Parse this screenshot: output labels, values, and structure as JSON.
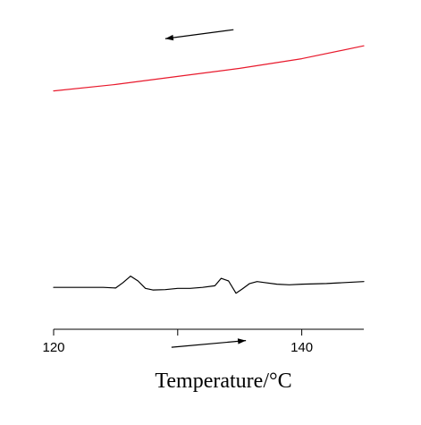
{
  "chart_data": {
    "type": "line",
    "title": "",
    "xlabel": "Temperature/°C",
    "ylabel": "",
    "xlim": [
      120,
      145
    ],
    "xticks": [
      120,
      130,
      140
    ],
    "xtick_labels": [
      "120",
      "",
      "140"
    ],
    "grid": false,
    "legend": "none",
    "series": [
      {
        "color": "#e8192c",
        "direction": "cooling",
        "x": [
          120,
          125,
          130,
          135,
          140,
          145
        ],
        "y": [
          0.74,
          0.76,
          0.785,
          0.81,
          0.84,
          0.88
        ]
      },
      {
        "color": "#000000",
        "direction": "heating",
        "x": [
          120,
          122,
          124,
          125,
          125.6,
          126.2,
          126.8,
          127.4,
          128,
          129,
          130,
          131,
          132,
          133,
          133.5,
          134.1,
          134.7,
          135.2,
          135.8,
          136.4,
          137,
          138,
          139,
          140,
          142,
          145
        ],
        "y": [
          0.13,
          0.13,
          0.13,
          0.128,
          0.145,
          0.165,
          0.15,
          0.127,
          0.122,
          0.123,
          0.127,
          0.127,
          0.13,
          0.135,
          0.158,
          0.15,
          0.112,
          0.125,
          0.142,
          0.148,
          0.145,
          0.14,
          0.138,
          0.14,
          0.142,
          0.148
        ]
      }
    ],
    "arrows": [
      {
        "color": "#000000",
        "from": [
          134.5,
          0.93
        ],
        "to": [
          129,
          0.902
        ]
      },
      {
        "color": "#000000",
        "from": [
          129.5,
          -0.056
        ],
        "to": [
          135.5,
          -0.035
        ]
      }
    ]
  }
}
